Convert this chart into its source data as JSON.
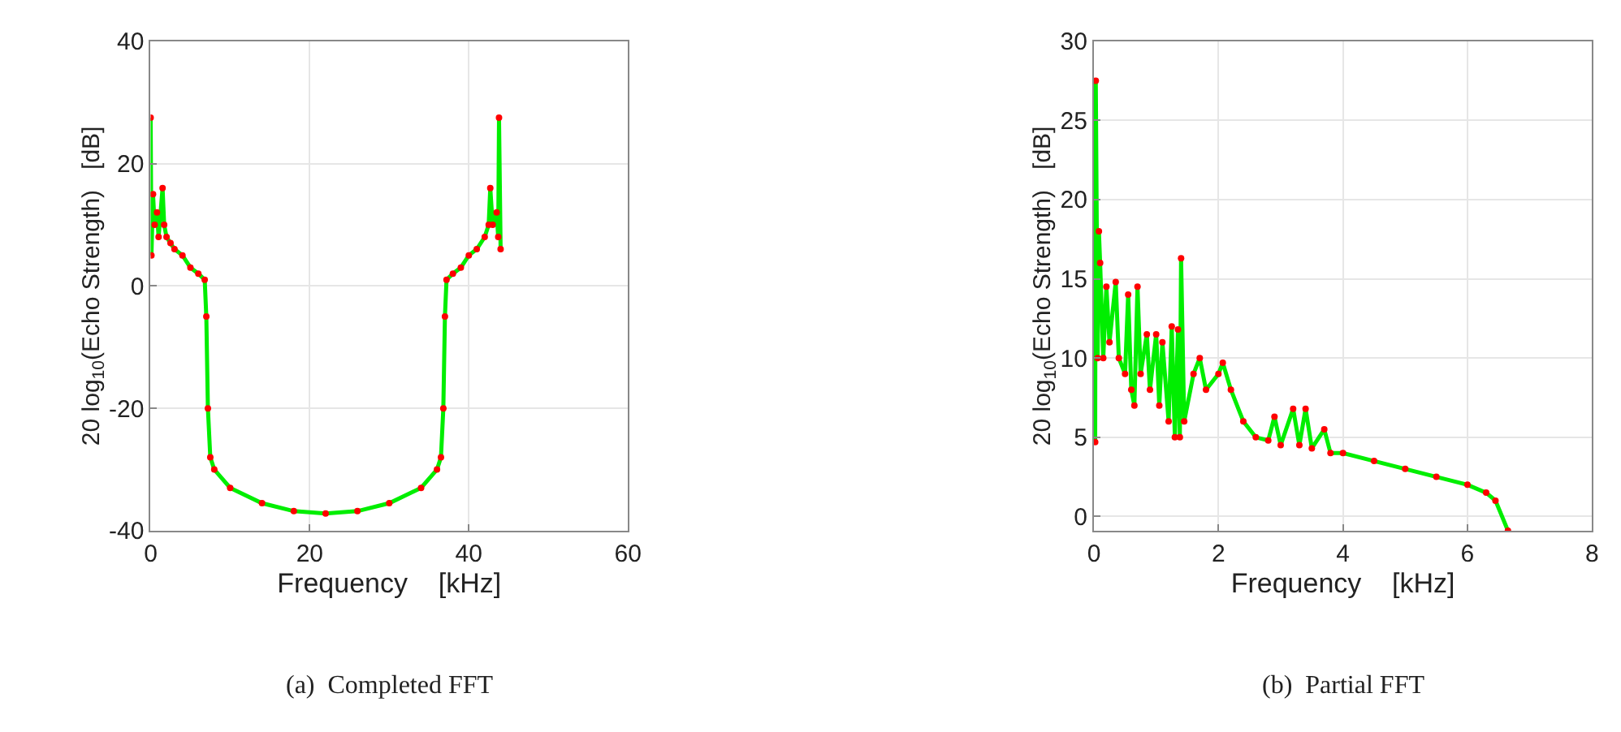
{
  "chart_data": [
    {
      "type": "line",
      "title": "(a)  Completed FFT",
      "xlabel": "Frequency    [kHz]",
      "ylabel": "20 log$_{10}$(Echo Strength)   [dB]",
      "xlim": [
        0,
        60
      ],
      "xticks": [
        0,
        20,
        40,
        60
      ],
      "ylim": [
        -40,
        40
      ],
      "yticks": [
        -40,
        -20,
        0,
        20,
        40
      ],
      "grid": true,
      "series": [
        {
          "color": "#00ee00",
          "marker": "none",
          "x": [
            0,
            0.1,
            0.3,
            0.5,
            0.8,
            1,
            1.5,
            1.7,
            2,
            2.5,
            3,
            4,
            5,
            6,
            6.8,
            7,
            7.2,
            7.5,
            8,
            10,
            14,
            18,
            22,
            26,
            30,
            34,
            36,
            36.5,
            36.8,
            37,
            37.2,
            38,
            39,
            40,
            41,
            42,
            42.5,
            42.7,
            43,
            43.5,
            43.7,
            43.8,
            44
          ],
          "values": [
            27.5,
            5,
            15,
            10,
            12,
            8,
            16,
            10,
            8,
            7,
            6,
            5,
            3,
            2,
            1,
            -5,
            -20,
            -28,
            -30,
            -33,
            -35.5,
            -36.8,
            -37.2,
            -36.8,
            -35.5,
            -33,
            -30,
            -28,
            -20,
            -5,
            1,
            2,
            3,
            5,
            6,
            8,
            10,
            16,
            10,
            12,
            8,
            27.5,
            6
          ]
        },
        {
          "type": "scatter",
          "color": "#ff0000",
          "marker": "circle",
          "x": [
            0,
            0.1,
            0.3,
            0.5,
            0.8,
            1,
            1.5,
            1.7,
            2,
            2.5,
            3,
            4,
            5,
            6,
            6.8,
            7,
            7.2,
            7.5,
            8,
            10,
            14,
            18,
            22,
            26,
            30,
            34,
            36,
            36.5,
            36.8,
            37,
            37.2,
            38,
            39,
            40,
            41,
            42,
            42.5,
            42.7,
            43,
            43.5,
            43.7,
            43.8,
            44
          ],
          "values": [
            27.5,
            5,
            15,
            10,
            12,
            8,
            16,
            10,
            8,
            7,
            6,
            5,
            3,
            2,
            1,
            -5,
            -20,
            -28,
            -30,
            -33,
            -35.5,
            -36.8,
            -37.2,
            -36.8,
            -35.5,
            -33,
            -30,
            -28,
            -20,
            -5,
            1,
            2,
            3,
            5,
            6,
            8,
            10,
            16,
            10,
            12,
            8,
            27.5,
            6
          ]
        }
      ]
    },
    {
      "type": "line",
      "title": "(b)  Partial FFT",
      "xlabel": "Frequency    [kHz]",
      "ylabel": "20 log$_{10}$(Echo Strength)   [dB]",
      "xlim": [
        0,
        8
      ],
      "xticks": [
        0,
        2,
        4,
        6,
        8
      ],
      "ylim": [
        -0.9,
        30
      ],
      "yticks": [
        0,
        5,
        10,
        15,
        20,
        25,
        30
      ],
      "grid": true,
      "series": [
        {
          "color": "#00ee00",
          "marker": "none",
          "x": [
            0.02,
            0.03,
            0.06,
            0.08,
            0.1,
            0.15,
            0.2,
            0.25,
            0.35,
            0.4,
            0.5,
            0.55,
            0.6,
            0.65,
            0.7,
            0.75,
            0.85,
            0.9,
            1.0,
            1.05,
            1.1,
            1.2,
            1.25,
            1.3,
            1.35,
            1.38,
            1.4,
            1.45,
            1.6,
            1.7,
            1.8,
            2.0,
            2.07,
            2.2,
            2.4,
            2.6,
            2.8,
            2.9,
            3.0,
            3.2,
            3.3,
            3.4,
            3.5,
            3.7,
            3.8,
            4.0,
            4.5,
            5.0,
            5.5,
            6.0,
            6.3,
            6.45,
            6.65
          ],
          "values": [
            4.7,
            27.5,
            10,
            18,
            16,
            10,
            14.5,
            11,
            14.8,
            10,
            9,
            14,
            8,
            7,
            14.5,
            9,
            11.5,
            8,
            11.5,
            7,
            11,
            6,
            12,
            5,
            11.8,
            5,
            16.3,
            6,
            9,
            10,
            8,
            9,
            9.7,
            8,
            6,
            5,
            4.8,
            6.3,
            4.5,
            6.8,
            4.5,
            6.8,
            4.3,
            5.5,
            4,
            4,
            3.5,
            3,
            2.5,
            2,
            1.5,
            1,
            -0.9
          ]
        },
        {
          "type": "scatter",
          "color": "#ff0000",
          "marker": "circle",
          "x": [
            0.02,
            0.03,
            0.06,
            0.08,
            0.1,
            0.15,
            0.2,
            0.25,
            0.35,
            0.4,
            0.5,
            0.55,
            0.6,
            0.65,
            0.7,
            0.75,
            0.85,
            0.9,
            1.0,
            1.05,
            1.1,
            1.2,
            1.25,
            1.3,
            1.35,
            1.38,
            1.4,
            1.45,
            1.6,
            1.7,
            1.8,
            2.0,
            2.07,
            2.2,
            2.4,
            2.6,
            2.8,
            2.9,
            3.0,
            3.2,
            3.3,
            3.4,
            3.5,
            3.7,
            3.8,
            4.0,
            4.5,
            5.0,
            5.5,
            6.0,
            6.3,
            6.45,
            6.65
          ],
          "values": [
            4.7,
            27.5,
            10,
            18,
            16,
            10,
            14.5,
            11,
            14.8,
            10,
            9,
            14,
            8,
            7,
            14.5,
            9,
            11.5,
            8,
            11.5,
            7,
            11,
            6,
            12,
            5,
            11.8,
            5,
            16.3,
            6,
            9,
            10,
            8,
            9,
            9.7,
            8,
            6,
            5,
            4.8,
            6.3,
            4.5,
            6.8,
            4.5,
            6.8,
            4.3,
            5.5,
            4,
            4,
            3.5,
            3,
            2.5,
            2,
            1.5,
            1,
            -0.9
          ]
        }
      ]
    }
  ]
}
